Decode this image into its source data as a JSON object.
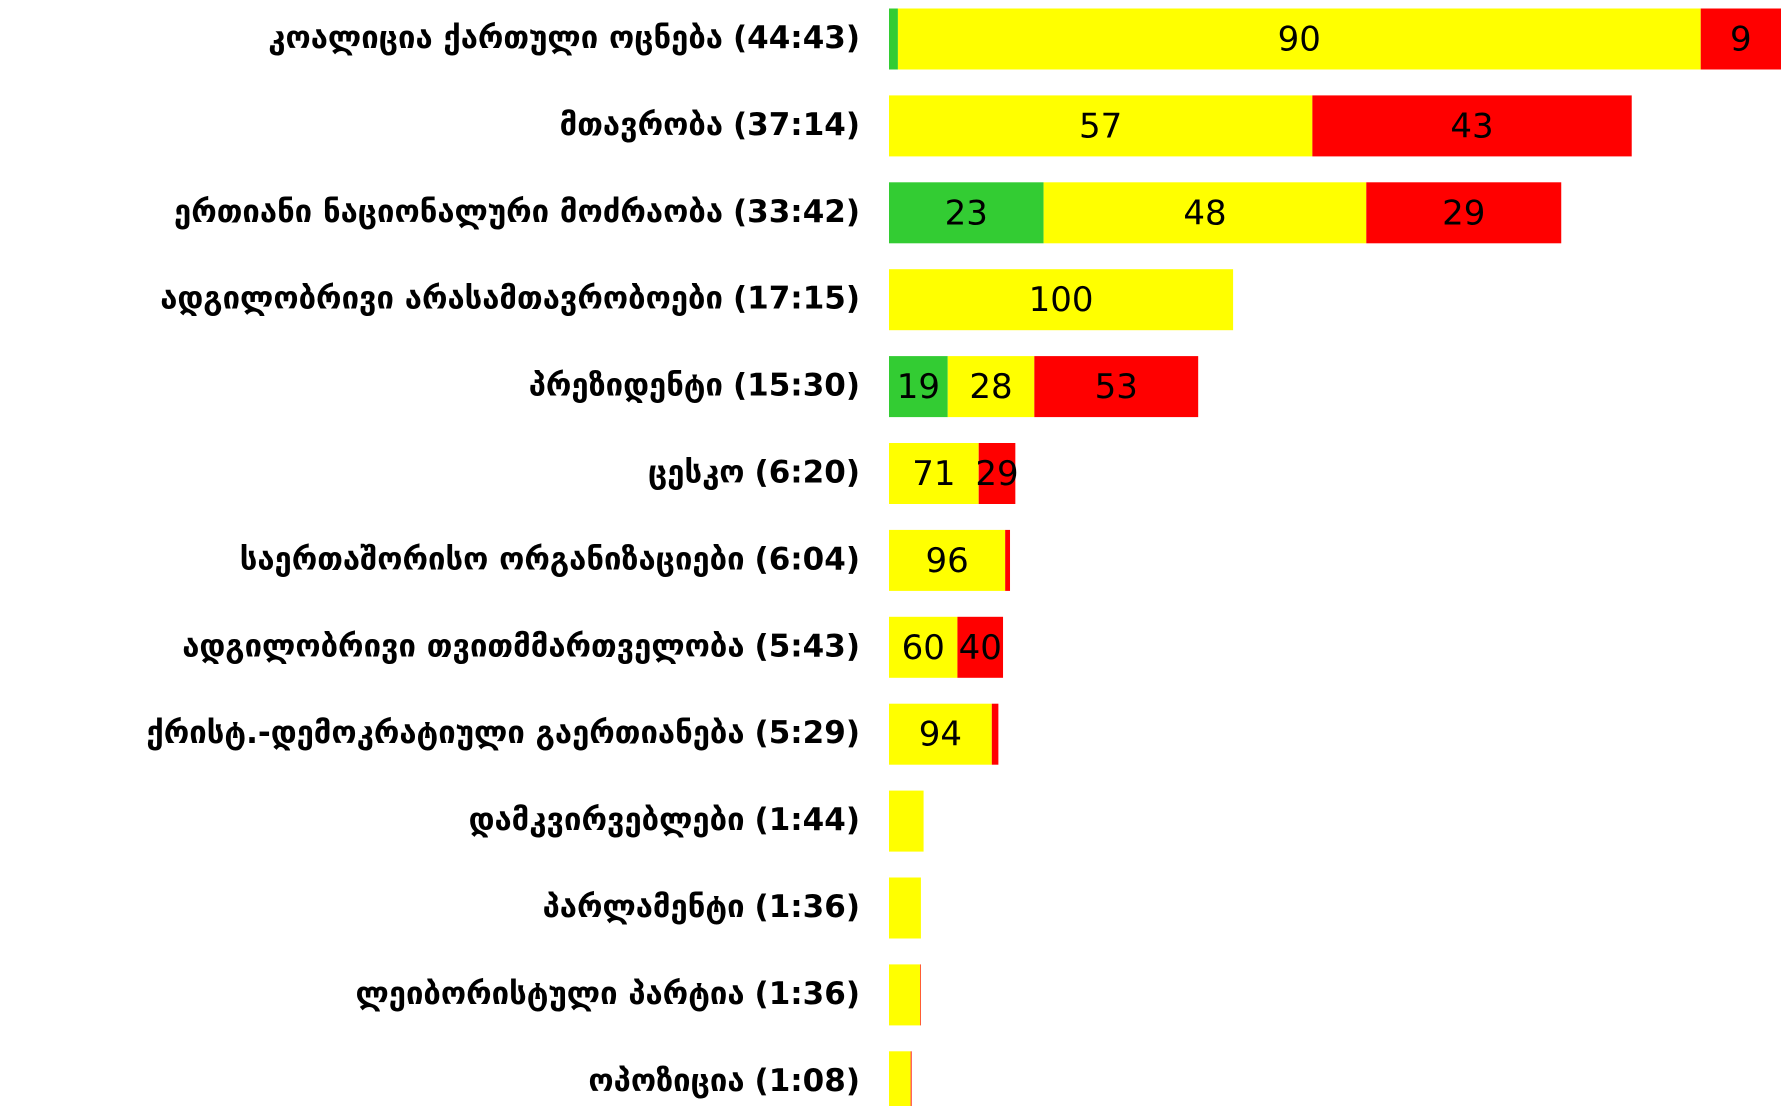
{
  "chart_data": {
    "type": "bar",
    "orientation": "horizontal",
    "stacked": true,
    "categories": [
      "კოალიცია ქართული ოცნება",
      "მთავრობა",
      "ერთიანი ნაციონალური მოძრაობა",
      "ადგილობრივი არასამთავრობოები",
      "პრეზიდენტი",
      "ცესკო",
      "საერთაშორისო ორგანიზაციები",
      "ადგილობრივი თვითმმართველობა",
      "ქრისტ.-დემოკრატიული გაერთიანება",
      "დამკვირვებლები",
      "პარლამენტი",
      "ლეიბორისტული პარტია",
      "ოპოზიცია"
    ],
    "durations": [
      {
        "value": 2683,
        "label": "(44:43)"
      },
      {
        "value": 2234,
        "label": "(37:14)"
      },
      {
        "value": 2022,
        "label": "(33:42)"
      },
      {
        "value": 1035,
        "label": "(17:15)"
      },
      {
        "value": 930,
        "label": "(15:30)"
      },
      {
        "value": 380,
        "label": "(6:20)"
      },
      {
        "value": 364,
        "label": "(6:04)"
      },
      {
        "value": 343,
        "label": "(5:43)"
      },
      {
        "value": 329,
        "label": "(5:29)"
      },
      {
        "value": 104,
        "label": "(1:44)"
      },
      {
        "value": 96,
        "label": "(1:36)"
      },
      {
        "value": 96,
        "label": "(1:36)"
      },
      {
        "value": 68,
        "label": "(1:08)"
      }
    ],
    "series": [
      {
        "color": "#33cc33",
        "values": [
          1,
          0,
          23,
          0,
          19,
          0,
          0,
          0,
          0,
          0,
          0,
          0,
          0
        ],
        "value_labels": [
          null,
          null,
          "23",
          null,
          "19",
          null,
          null,
          null,
          null,
          null,
          null,
          null,
          null
        ]
      },
      {
        "color": "#ffff00",
        "values": [
          90,
          57,
          48,
          100,
          28,
          71,
          96,
          60,
          94,
          100,
          100,
          98,
          96
        ],
        "value_labels": [
          "90",
          "57",
          "48",
          "100",
          "28",
          "71",
          "96",
          "60",
          "94",
          null,
          null,
          null,
          null
        ]
      },
      {
        "color": "#ff0000",
        "values": [
          9,
          43,
          29,
          0,
          53,
          29,
          4,
          40,
          6,
          0,
          0,
          2,
          4
        ],
        "value_labels": [
          "9",
          "43",
          "29",
          null,
          "53",
          "29",
          null,
          "40",
          null,
          null,
          null,
          null,
          null
        ]
      }
    ]
  }
}
